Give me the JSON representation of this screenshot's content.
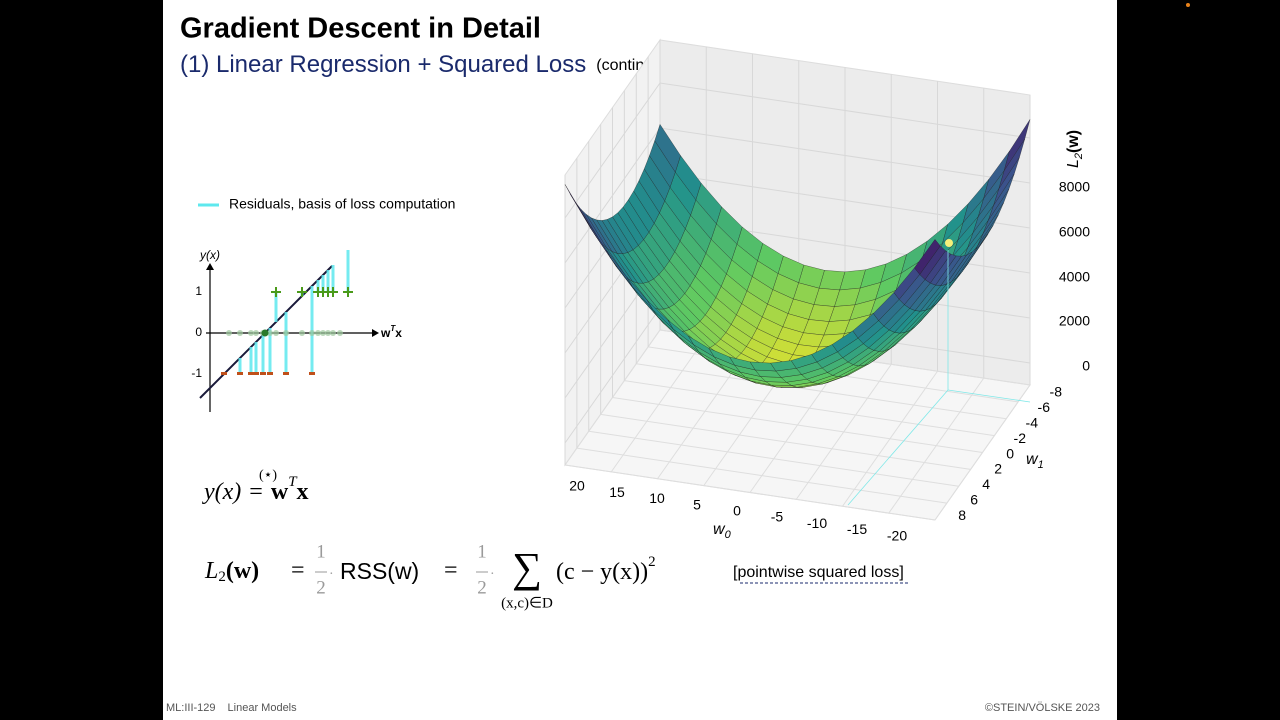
{
  "header": {
    "title": "Gradient Descent in Detail",
    "subtitle": "(1) Linear Regression + Squared Loss",
    "note": "(continued)"
  },
  "residual_plot": {
    "legend": "Residuals, basis of loss computation",
    "y_label": "y(x)",
    "x_label": {
      "base": "w",
      "sup": "T",
      "tail": "x"
    },
    "yticks": [
      "1",
      "0",
      "-1"
    ]
  },
  "formula_model": {
    "lhs": "y(x)",
    "marker": "(⋆)",
    "eq": "=",
    "rhs": "w",
    "sup": "T",
    "tail": "x"
  },
  "formula_loss": {
    "lhs": "L",
    "lhs_sub": "2",
    "lhs_arg": "(w)",
    "eq1": "=",
    "half1_num": "1",
    "half1_den": "2",
    "dot1": "·",
    "rss": "RSS(w)",
    "eq2": "=",
    "half2_num": "1",
    "half2_den": "2",
    "dot2": "·",
    "sum": "∑",
    "sum_range": "(x,c)∈D",
    "term": "(c − y(x))",
    "power": "2",
    "remark": "[pointwise squared loss]"
  },
  "surface_plot": {
    "z_label": {
      "base": "L",
      "sub": "2",
      "tail": "(w)"
    },
    "z_ticks": [
      "8000",
      "6000",
      "4000",
      "2000",
      "0"
    ],
    "w1_label": {
      "base": "w",
      "sub": "1"
    },
    "w1_ticks": [
      "-8",
      "-6",
      "-4",
      "-2",
      "0",
      "2",
      "4",
      "6",
      "8"
    ],
    "w0_label": {
      "base": "w",
      "sub": "0"
    },
    "w0_ticks": [
      "20",
      "15",
      "10",
      "5",
      "0",
      "-5",
      "-10",
      "-15",
      "-20"
    ]
  },
  "footer": {
    "course": "ML:III-129",
    "section": "Linear Models",
    "copyright": "©STEIN/VÖLSKE 2023"
  }
}
